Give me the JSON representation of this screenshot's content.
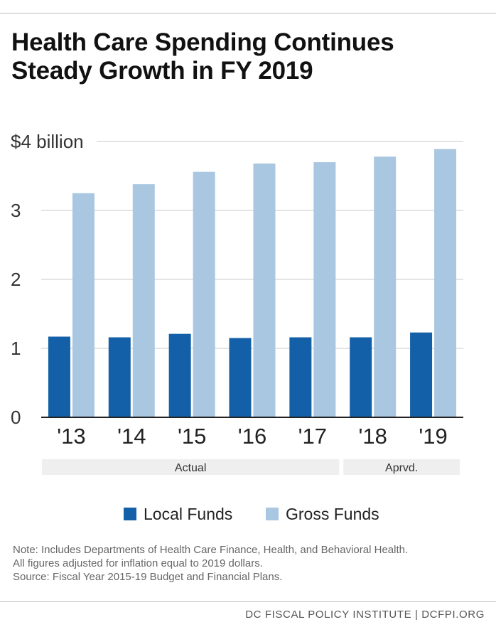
{
  "title_line1": "Health Care Spending Continues",
  "title_line2": "Steady Growth in FY 2019",
  "chart_data": {
    "type": "bar",
    "categories": [
      "'13",
      "'14",
      "'15",
      "'16",
      "'17",
      "'18",
      "'19"
    ],
    "series": [
      {
        "name": "Local Funds",
        "color": "#1460a8",
        "values": [
          1.17,
          1.16,
          1.21,
          1.15,
          1.16,
          1.16,
          1.23
        ]
      },
      {
        "name": "Gross Funds",
        "color": "#a9c7e1",
        "values": [
          3.25,
          3.38,
          3.56,
          3.68,
          3.7,
          3.78,
          3.89
        ]
      }
    ],
    "y_ticks": [
      {
        "value": 0,
        "label": "0"
      },
      {
        "value": 1,
        "label": "1"
      },
      {
        "value": 2,
        "label": "2"
      },
      {
        "value": 3,
        "label": "3"
      },
      {
        "value": 4,
        "label": "$4 billion"
      }
    ],
    "ylim": [
      0,
      4
    ],
    "grid": true,
    "legend_position": "bottom",
    "groups": [
      {
        "label": "Actual",
        "categories": [
          "'13",
          "'14",
          "'15",
          "'16",
          "'17"
        ]
      },
      {
        "label": "Aprvd.",
        "categories": [
          "'18",
          "'19"
        ]
      }
    ]
  },
  "note_lines": [
    "Note: Includes Departments of Health Care Finance, Health, and Behavioral Health.",
    "All figures adjusted for inflation equal to 2019 dollars.",
    "Source: Fiscal Year 2015-19 Budget and Financial Plans."
  ],
  "footer": "DC FISCAL POLICY INSTITUTE | DCFPI.ORG"
}
